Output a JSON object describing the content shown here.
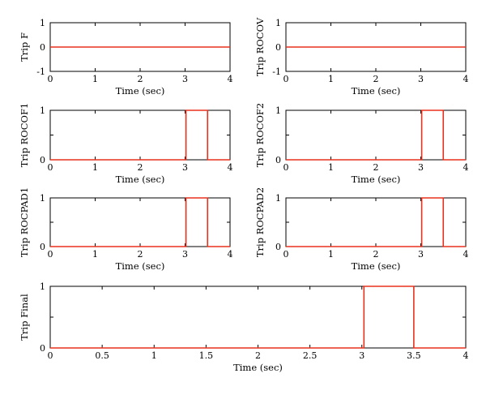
{
  "figure": {
    "background": "#ffffff",
    "axis_color": "#000000",
    "line_color": "#e8321e"
  },
  "chart_data": [
    {
      "type": "line",
      "title": "",
      "xlabel": "Time (sec)",
      "ylabel": "Trip F",
      "xlim": [
        0,
        4
      ],
      "ylim": [
        -1,
        1
      ],
      "xticks": [
        0,
        1,
        2,
        3,
        4
      ],
      "yticks": [
        -1,
        0,
        1
      ],
      "grid": false,
      "series": [
        {
          "x": [
            0,
            4
          ],
          "y": [
            0,
            0
          ],
          "color": "#e8321e"
        }
      ]
    },
    {
      "type": "line",
      "title": "",
      "xlabel": "Time (sec)",
      "ylabel": "Trip ROCOV",
      "xlim": [
        0,
        4
      ],
      "ylim": [
        -1,
        1
      ],
      "xticks": [
        0,
        1,
        2,
        3,
        4
      ],
      "yticks": [
        -1,
        0,
        1
      ],
      "grid": false,
      "series": [
        {
          "x": [
            0,
            4
          ],
          "y": [
            0,
            0
          ],
          "color": "#e8321e"
        }
      ]
    },
    {
      "type": "line",
      "title": "",
      "xlabel": "Time (sec)",
      "ylabel": "Trip ROCOF1",
      "xlim": [
        0,
        4
      ],
      "ylim": [
        0,
        1
      ],
      "xticks": [
        0,
        1,
        2,
        3,
        4
      ],
      "yticks": [
        0,
        0.5,
        1
      ],
      "grid": false,
      "series": [
        {
          "x": [
            0,
            3.02,
            3.02,
            3.5,
            3.5,
            4
          ],
          "y": [
            0,
            0,
            1,
            1,
            0,
            0
          ],
          "color": "#e8321e"
        }
      ]
    },
    {
      "type": "line",
      "title": "",
      "xlabel": "Time (sec)",
      "ylabel": "Trip ROCOF2",
      "xlim": [
        0,
        4
      ],
      "ylim": [
        0,
        1
      ],
      "xticks": [
        0,
        1,
        2,
        3,
        4
      ],
      "yticks": [
        0,
        0.5,
        1
      ],
      "grid": false,
      "series": [
        {
          "x": [
            0,
            3.02,
            3.02,
            3.5,
            3.5,
            4
          ],
          "y": [
            0,
            0,
            1,
            1,
            0,
            0
          ],
          "color": "#e8321e"
        }
      ]
    },
    {
      "type": "line",
      "title": "",
      "xlabel": "Time (sec)",
      "ylabel": "Trip ROCPAD1",
      "xlim": [
        0,
        4
      ],
      "ylim": [
        0,
        1
      ],
      "xticks": [
        0,
        1,
        2,
        3,
        4
      ],
      "yticks": [
        0,
        0.5,
        1
      ],
      "grid": false,
      "series": [
        {
          "x": [
            0,
            3.02,
            3.02,
            3.5,
            3.5,
            4
          ],
          "y": [
            0,
            0,
            1,
            1,
            0,
            0
          ],
          "color": "#e8321e"
        }
      ]
    },
    {
      "type": "line",
      "title": "",
      "xlabel": "Time (sec)",
      "ylabel": "Trip ROCPAD2",
      "xlim": [
        0,
        4
      ],
      "ylim": [
        0,
        1
      ],
      "xticks": [
        0,
        1,
        2,
        3,
        4
      ],
      "yticks": [
        0,
        0.5,
        1
      ],
      "grid": false,
      "series": [
        {
          "x": [
            0,
            3.02,
            3.02,
            3.5,
            3.5,
            4
          ],
          "y": [
            0,
            0,
            1,
            1,
            0,
            0
          ],
          "color": "#e8321e"
        }
      ]
    },
    {
      "type": "line",
      "title": "",
      "xlabel": "Time (sec)",
      "ylabel": "Trip Final",
      "xlim": [
        0,
        4
      ],
      "ylim": [
        0,
        1
      ],
      "xticks": [
        0,
        0.5,
        1,
        1.5,
        2,
        2.5,
        3,
        3.5,
        4
      ],
      "yticks": [
        0,
        0.5,
        1
      ],
      "grid": false,
      "series": [
        {
          "x": [
            0,
            3.02,
            3.02,
            3.5,
            3.5,
            4
          ],
          "y": [
            0,
            0,
            1,
            1,
            0,
            0
          ],
          "color": "#e8321e"
        }
      ]
    }
  ]
}
